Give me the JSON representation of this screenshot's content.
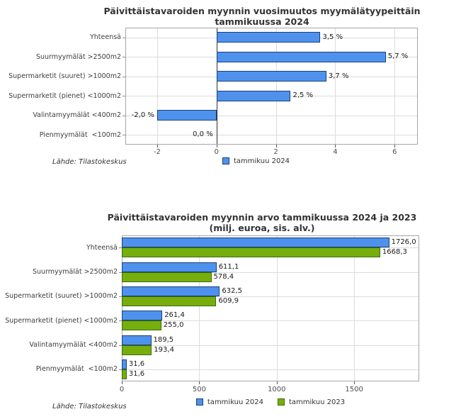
{
  "colors": {
    "series": {
      "blue": {
        "fill": "#4E92EE",
        "border": "#1C4077"
      },
      "green": {
        "fill": "#75AE0D",
        "border": "#3F6B04"
      }
    },
    "grid": "#dcdcdc",
    "plot_border": "#a6a6a6",
    "zero_line": "#2f2f2f",
    "title_text": "#333333"
  },
  "chart_data": [
    {
      "type": "bar",
      "orientation": "horizontal",
      "title": "Päivittäistavaroiden myynnin vuosimuutos myymälätyypeittäin",
      "subtitle": "tammikuussa 2024",
      "categories": [
        "Yhteensä",
        "Suurmyymälät >2500m2",
        "Supermarketit (suuret) >1000m2",
        "Supermarketit (pienet) <1000m2",
        "Valintamyymälät <400m2",
        "Pienmyymälät  <100m2"
      ],
      "series": [
        {
          "name": "tammikuu 2024",
          "color_key": "blue",
          "values": [
            3.5,
            5.7,
            3.7,
            2.5,
            -2.0,
            0.0
          ],
          "value_labels": [
            "3,5 %",
            "5,7 %",
            "3,7 %",
            "2,5 %",
            "-2,0 %",
            "0,0 %"
          ]
        }
      ],
      "xlim": [
        -3.07,
        6.78
      ],
      "xticks": [
        -2,
        0,
        2,
        4,
        6
      ],
      "xtick_labels": [
        "-2",
        "0",
        "2",
        "4",
        "6"
      ],
      "zero_line": true,
      "grid": true,
      "legend_position": "bottom-center",
      "source_note": "Lähde: Tilastokeskus"
    },
    {
      "type": "bar",
      "orientation": "horizontal",
      "title": "Päivittäistavaroiden myynnin arvo tammikuussa 2024 ja 2023",
      "subtitle": "(milj. euroa, sis. alv.)",
      "categories": [
        "Yhteensä",
        "Suurmyymälät >2500m2",
        "Supermarketit (suuret) >1000m2",
        "Supermarketit (pienet) <1000m2",
        "Valintamyymälät <400m2",
        "Pienmyymälät  <100m2"
      ],
      "series": [
        {
          "name": "tammikuu 2024",
          "color_key": "blue",
          "values": [
            1726.0,
            611.1,
            632.5,
            261.4,
            189.5,
            31.6
          ],
          "value_labels": [
            "1726,0",
            "611,1",
            "632,5",
            "261,4",
            "189,5",
            "31,6"
          ]
        },
        {
          "name": "tammikuu 2023",
          "color_key": "green",
          "values": [
            1668.3,
            578.4,
            609.9,
            255.0,
            193.4,
            31.6
          ],
          "value_labels": [
            "1668,3",
            "578,4",
            "609,9",
            "255,0",
            "193,4",
            "31,6"
          ]
        }
      ],
      "xlim": [
        0,
        1920
      ],
      "xticks": [
        0,
        500,
        1000,
        1500
      ],
      "xtick_labels": [
        "0",
        "500",
        "1000",
        "1500"
      ],
      "zero_line": false,
      "grid": true,
      "legend_position": "bottom-center",
      "source_note": "Lähde: Tilastokeskus"
    }
  ]
}
